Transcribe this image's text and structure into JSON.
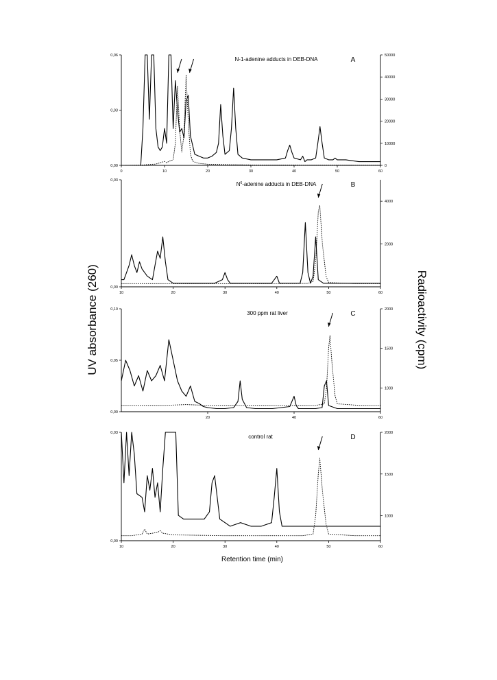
{
  "figure": {
    "y_left_label": "UV absorbance (260)",
    "y_right_label": "Radioactivity (cpm)",
    "x_label": "Retention time (min)"
  },
  "chart_data": [
    {
      "type": "line",
      "panel": "A",
      "title": "N-1-adenine adducts in DEB-DNA",
      "xlim": [
        0,
        60
      ],
      "xticks": [
        0,
        10,
        20,
        30,
        40,
        50,
        60
      ],
      "ylim_left": [
        0,
        0.06
      ],
      "yticks_left": [
        "0,00",
        "0,03",
        "0,06"
      ],
      "ylim_right": [
        0,
        50000
      ],
      "yticks_right": [
        "0",
        "10000",
        "20000",
        "30000",
        "40000",
        "50000"
      ],
      "series": [
        {
          "style": "solid",
          "axis": "left",
          "x": [
            0,
            4.5,
            5.0,
            5.5,
            6.0,
            6.5,
            7.0,
            7.5,
            8.0,
            8.5,
            9.0,
            9.5,
            10.0,
            10.5,
            11.0,
            11.5,
            12.0,
            12.5,
            13.0,
            13.5,
            14.0,
            14.5,
            15.0,
            15.5,
            16.0,
            17.0,
            18.0,
            19.0,
            20.0,
            21.0,
            22.0,
            22.5,
            23.0,
            23.5,
            24.0,
            25.0,
            25.5,
            26.0,
            26.5,
            27.0,
            28.0,
            30.0,
            33.0,
            36.0,
            38.0,
            38.5,
            39.0,
            39.5,
            40.0,
            41.5,
            42.0,
            42.5,
            43.0,
            44.0,
            45.0,
            45.5,
            46.0,
            46.5,
            47.0,
            48.0,
            49.0,
            49.5,
            50.0,
            52.0,
            55.0,
            58.0,
            60.0
          ],
          "y": [
            0.0,
            0.0,
            0.02,
            0.06,
            0.06,
            0.025,
            0.06,
            0.06,
            0.02,
            0.01,
            0.008,
            0.01,
            0.02,
            0.012,
            0.06,
            0.06,
            0.02,
            0.046,
            0.03,
            0.018,
            0.02,
            0.015,
            0.035,
            0.038,
            0.016,
            0.006,
            0.005,
            0.004,
            0.004,
            0.005,
            0.007,
            0.012,
            0.033,
            0.016,
            0.006,
            0.008,
            0.02,
            0.042,
            0.02,
            0.006,
            0.004,
            0.003,
            0.003,
            0.003,
            0.004,
            0.008,
            0.011,
            0.007,
            0.004,
            0.003,
            0.005,
            0.002,
            0.003,
            0.003,
            0.004,
            0.012,
            0.021,
            0.012,
            0.004,
            0.003,
            0.003,
            0.004,
            0.003,
            0.003,
            0.002,
            0.002,
            0.002
          ]
        },
        {
          "style": "dotted",
          "axis": "right",
          "x": [
            0,
            5,
            8,
            10,
            10.5,
            11,
            12,
            12.5,
            13,
            13.5,
            14,
            14.5,
            15,
            15.5,
            16,
            16.5,
            17,
            18,
            20,
            25,
            30,
            60
          ],
          "y": [
            0,
            200,
            600,
            1800,
            1200,
            1800,
            2500,
            10000,
            36000,
            16000,
            6000,
            14000,
            41000,
            20000,
            5000,
            2000,
            1500,
            900,
            500,
            300,
            200,
            100
          ]
        }
      ],
      "arrows_at_x": [
        13.0,
        15.8
      ]
    },
    {
      "type": "line",
      "panel": "B",
      "title": "N6-adenine adducts in DEB-DNA",
      "xlim": [
        10,
        60
      ],
      "xticks": [
        10,
        20,
        30,
        40,
        50,
        60
      ],
      "ylim_left": [
        0,
        0.03
      ],
      "yticks_left": [
        "0,00",
        "0,03"
      ],
      "ylim_right": [
        0,
        5000
      ],
      "yticks_right": [
        "2000",
        "4000"
      ],
      "series": [
        {
          "style": "solid",
          "axis": "left",
          "x": [
            10,
            10.5,
            11,
            11.5,
            12,
            12.5,
            13,
            13.5,
            14,
            14.5,
            15,
            16,
            16.5,
            17,
            17.5,
            18,
            18.5,
            19,
            20,
            22,
            24,
            26,
            28,
            29.5,
            30,
            30.5,
            31,
            33,
            35,
            37,
            39,
            40,
            40.5,
            41,
            43,
            44.5,
            45,
            45.5,
            46,
            46.5,
            47,
            47.5,
            48,
            49,
            52,
            55,
            58,
            60
          ],
          "y": [
            0.002,
            0.002,
            0.004,
            0.006,
            0.009,
            0.006,
            0.004,
            0.007,
            0.005,
            0.004,
            0.003,
            0.002,
            0.006,
            0.01,
            0.008,
            0.014,
            0.007,
            0.002,
            0.001,
            0.001,
            0.001,
            0.001,
            0.001,
            0.002,
            0.004,
            0.002,
            0.001,
            0.001,
            0.001,
            0.001,
            0.001,
            0.003,
            0.001,
            0.001,
            0.001,
            0.001,
            0.004,
            0.018,
            0.004,
            0.001,
            0.003,
            0.014,
            0.002,
            0.001,
            0.001,
            0.001,
            0.001,
            0.001
          ]
        },
        {
          "style": "dotted",
          "axis": "right",
          "x": [
            10,
            20,
            30,
            40,
            46,
            47,
            47.5,
            48,
            48.3,
            48.8,
            49.5,
            50,
            55,
            60
          ],
          "y": [
            150,
            150,
            150,
            150,
            160,
            250,
            1200,
            3500,
            3800,
            2000,
            500,
            200,
            150,
            150
          ]
        }
      ],
      "arrows_at_x": [
        48.0
      ]
    },
    {
      "type": "line",
      "panel": "C",
      "title": "300 ppm rat liver",
      "xlim": [
        0,
        60
      ],
      "xticks": [
        20,
        40,
        60
      ],
      "ylim_left": [
        0,
        0.1
      ],
      "yticks_left": [
        "0,00",
        "0,05",
        "0,10"
      ],
      "ylim_right": [
        700,
        2000
      ],
      "yticks_right": [
        "1000",
        "1500",
        "2000"
      ],
      "series": [
        {
          "style": "solid",
          "axis": "left",
          "x": [
            0,
            1,
            2,
            3,
            4,
            5,
            6,
            7,
            8,
            9,
            10,
            11,
            12,
            13,
            14,
            15,
            16,
            17,
            18,
            19,
            20,
            22,
            24,
            26,
            27,
            27.5,
            28,
            29,
            31,
            33,
            35,
            37,
            39,
            40,
            40.5,
            41,
            43,
            45,
            46.5,
            47,
            47.5,
            48,
            50,
            52,
            54,
            56,
            58,
            60
          ],
          "y": [
            0.03,
            0.05,
            0.04,
            0.025,
            0.035,
            0.02,
            0.04,
            0.03,
            0.035,
            0.045,
            0.03,
            0.07,
            0.05,
            0.03,
            0.02,
            0.015,
            0.025,
            0.01,
            0.008,
            0.005,
            0.004,
            0.003,
            0.003,
            0.004,
            0.01,
            0.03,
            0.012,
            0.004,
            0.003,
            0.003,
            0.003,
            0.004,
            0.005,
            0.015,
            0.006,
            0.003,
            0.003,
            0.003,
            0.004,
            0.025,
            0.03,
            0.006,
            0.003,
            0.003,
            0.003,
            0.003,
            0.003,
            0.003
          ]
        },
        {
          "style": "dotted",
          "axis": "right",
          "x": [
            0,
            10,
            15,
            20,
            30,
            45,
            47,
            47.5,
            48,
            48.3,
            48.8,
            49.5,
            50,
            55,
            60
          ],
          "y": [
            780,
            780,
            790,
            780,
            780,
            780,
            800,
            1000,
            1500,
            1660,
            1300,
            900,
            800,
            780,
            780
          ]
        }
      ],
      "arrows_at_x": [
        48.0
      ]
    },
    {
      "type": "line",
      "panel": "D",
      "title": "control rat",
      "xlim": [
        10,
        60
      ],
      "xticks": [
        10,
        20,
        30,
        40,
        50,
        60
      ],
      "ylim_left": [
        0,
        0.03
      ],
      "yticks_left": [
        "0,00",
        "0,03"
      ],
      "ylim_right": [
        700,
        2000
      ],
      "yticks_right": [
        "1000",
        "1500",
        "2000"
      ],
      "series": [
        {
          "style": "solid",
          "axis": "left",
          "x": [
            10,
            10.5,
            11,
            11.5,
            12,
            12.5,
            13,
            14,
            14.5,
            15,
            15.5,
            16,
            16.5,
            17,
            17.5,
            18,
            18.5,
            19,
            19.5,
            20,
            20.5,
            21,
            22,
            24,
            26,
            27,
            27.5,
            28,
            29,
            31,
            33,
            35,
            37,
            39,
            39.5,
            40,
            40.5,
            41,
            43,
            45,
            47,
            49,
            51,
            53,
            55,
            57,
            60
          ],
          "y": [
            0.03,
            0.016,
            0.03,
            0.018,
            0.03,
            0.024,
            0.013,
            0.012,
            0.008,
            0.018,
            0.014,
            0.02,
            0.012,
            0.016,
            0.008,
            0.02,
            0.03,
            0.03,
            0.03,
            0.03,
            0.03,
            0.007,
            0.006,
            0.006,
            0.006,
            0.008,
            0.016,
            0.018,
            0.006,
            0.004,
            0.005,
            0.004,
            0.004,
            0.005,
            0.012,
            0.02,
            0.008,
            0.004,
            0.004,
            0.004,
            0.004,
            0.004,
            0.004,
            0.004,
            0.004,
            0.004,
            0.004
          ]
        },
        {
          "style": "dotted",
          "axis": "right",
          "x": [
            10,
            12,
            14,
            14.5,
            15,
            16,
            17,
            17.5,
            18,
            20,
            30,
            45,
            47,
            47.5,
            48,
            48.3,
            48.8,
            49.5,
            50,
            55,
            60
          ],
          "y": [
            760,
            760,
            780,
            840,
            780,
            790,
            800,
            820,
            790,
            770,
            760,
            760,
            780,
            1000,
            1500,
            1690,
            1300,
            900,
            780,
            760,
            760
          ]
        }
      ],
      "arrows_at_x": [
        48.0
      ]
    }
  ]
}
